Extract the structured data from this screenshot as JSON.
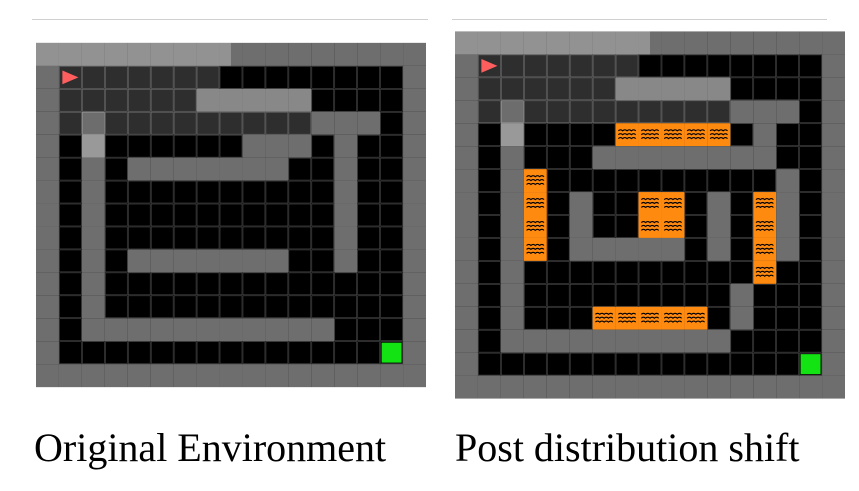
{
  "colors": {
    "wall": "#6e6e6e",
    "floor": "#000000",
    "gridline": "#4a4a4a",
    "visible_overlay": "#ffffff",
    "agent": "#ff3b3b",
    "goal": "#13e313",
    "lava": "#ff8a10",
    "lava_wave": "#000000"
  },
  "icons": {
    "agent": "red-triangle-agent-icon",
    "goal": "green-square-goal-icon",
    "lava": "orange-lava-wave-tile"
  },
  "panels": [
    {
      "caption": "Original Environment",
      "map": [
        "#################",
        "#A..............#",
        "#......#####....#",
        "#...........###.#",
        "#.#......###.#..#",
        "#.#.#######..#..#",
        "#.#..........#..#",
        "#.#..........#..#",
        "#.#..........#..#",
        "#.#.#######..#..#",
        "#.#.............#",
        "#.#.............#",
        "#.###########...#",
        "#..............G#",
        "#################"
      ]
    },
    {
      "caption": "Post distribution shift",
      "map": [
        "#################",
        "#A..............#",
        "#......#####....#",
        "#...........###.#",
        "#.#....LLLLL.#..#",
        "#.#...########..#",
        "#.#L..........#.#",
        "#.#L.#..LL.#.L#.#",
        "#.#L.#..LL.#.L#.#",
        "#.#L.#####.#.L#.#",
        "#.#..........L..#",
        "#.#.........#...#",
        "#.#...LLLLL.#...#",
        "#.##########....#",
        "#..............G#",
        "#################"
      ]
    }
  ]
}
